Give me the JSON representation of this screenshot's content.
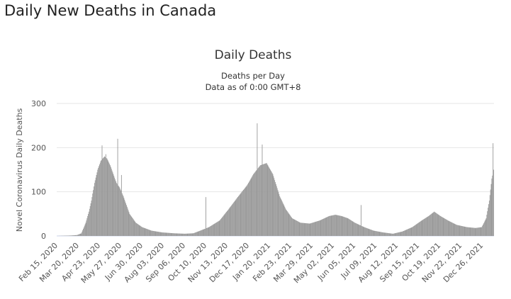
{
  "page": {
    "heading": "Daily New Deaths in Canada"
  },
  "chart_data": {
    "type": "bar",
    "title": "Daily Deaths",
    "subtitle_line1": "Deaths per Day",
    "subtitle_line2": "Data as of 0:00 GMT+8",
    "xlabel": "",
    "ylabel": "Novel Coronavirus Daily Deaths",
    "ylim": [
      0,
      300
    ],
    "yticks": [
      0,
      100,
      200,
      300
    ],
    "grid": true,
    "bar_color": "#999999",
    "start_date": "2020-02-15",
    "end_date": "2022-01-13",
    "xtick_labels": [
      "Feb 15, 2020",
      "Mar 20, 2020",
      "Apr 23, 2020",
      "May 27, 2020",
      "Jun 30, 2020",
      "Aug 03, 2020",
      "Sep 06, 2020",
      "Oct 10, 2020",
      "Nov 13, 2020",
      "Dec 17, 2020",
      "Jan 20, 2021",
      "Feb 23, 2021",
      "Mar 29, 2021",
      "May 02, 2021",
      "Jun 05, 2021",
      "Jul 09, 2021",
      "Aug 12, 2021",
      "Sep 15, 2021",
      "Oct 19, 2021",
      "Nov 22, 2021",
      "Dec 26, 2021"
    ],
    "series": [
      {
        "name": "",
        "points": [
          [
            "2020-02-15",
            0
          ],
          [
            "2020-03-08",
            1
          ],
          [
            "2020-03-18",
            2
          ],
          [
            "2020-03-25",
            6
          ],
          [
            "2020-04-01",
            30
          ],
          [
            "2020-04-06",
            55
          ],
          [
            "2020-04-10",
            80
          ],
          [
            "2020-04-15",
            120
          ],
          [
            "2020-04-20",
            150
          ],
          [
            "2020-04-25",
            170
          ],
          [
            "2020-05-01",
            180
          ],
          [
            "2020-05-05",
            175
          ],
          [
            "2020-05-10",
            160
          ],
          [
            "2020-05-15",
            140
          ],
          [
            "2020-05-20",
            120
          ],
          [
            "2020-05-25",
            110
          ],
          [
            "2020-05-31",
            90
          ],
          [
            "2020-06-05",
            70
          ],
          [
            "2020-06-10",
            50
          ],
          [
            "2020-06-20",
            30
          ],
          [
            "2020-06-30",
            20
          ],
          [
            "2020-07-15",
            12
          ],
          [
            "2020-08-01",
            8
          ],
          [
            "2020-08-20",
            6
          ],
          [
            "2020-09-06",
            5
          ],
          [
            "2020-09-20",
            6
          ],
          [
            "2020-10-01",
            12
          ],
          [
            "2020-10-15",
            20
          ],
          [
            "2020-11-01",
            35
          ],
          [
            "2020-11-15",
            60
          ],
          [
            "2020-12-01",
            90
          ],
          [
            "2020-12-15",
            115
          ],
          [
            "2020-12-25",
            140
          ],
          [
            "2021-01-05",
            160
          ],
          [
            "2021-01-15",
            165
          ],
          [
            "2021-01-25",
            140
          ],
          [
            "2021-02-05",
            90
          ],
          [
            "2021-02-15",
            60
          ],
          [
            "2021-02-25",
            40
          ],
          [
            "2021-03-10",
            30
          ],
          [
            "2021-03-25",
            28
          ],
          [
            "2021-04-10",
            35
          ],
          [
            "2021-04-25",
            45
          ],
          [
            "2021-05-05",
            48
          ],
          [
            "2021-05-15",
            45
          ],
          [
            "2021-05-25",
            40
          ],
          [
            "2021-06-05",
            30
          ],
          [
            "2021-06-20",
            20
          ],
          [
            "2021-07-05",
            12
          ],
          [
            "2021-07-20",
            8
          ],
          [
            "2021-08-05",
            5
          ],
          [
            "2021-08-20",
            10
          ],
          [
            "2021-09-05",
            20
          ],
          [
            "2021-09-20",
            35
          ],
          [
            "2021-10-01",
            45
          ],
          [
            "2021-10-10",
            55
          ],
          [
            "2021-10-20",
            45
          ],
          [
            "2021-11-01",
            35
          ],
          [
            "2021-11-15",
            25
          ],
          [
            "2021-12-01",
            20
          ],
          [
            "2021-12-15",
            18
          ],
          [
            "2021-12-25",
            20
          ],
          [
            "2022-01-01",
            40
          ],
          [
            "2022-01-06",
            80
          ],
          [
            "2022-01-10",
            130
          ],
          [
            "2022-01-13",
            150
          ]
        ],
        "highlights": [
          [
            "2020-04-27",
            205
          ],
          [
            "2020-05-03",
            185
          ],
          [
            "2020-05-22",
            220
          ],
          [
            "2020-05-28",
            138
          ],
          [
            "2020-10-10",
            88
          ],
          [
            "2020-12-31",
            255
          ],
          [
            "2021-01-08",
            207
          ],
          [
            "2021-06-15",
            70
          ],
          [
            "2022-01-12",
            210
          ]
        ]
      }
    ]
  }
}
